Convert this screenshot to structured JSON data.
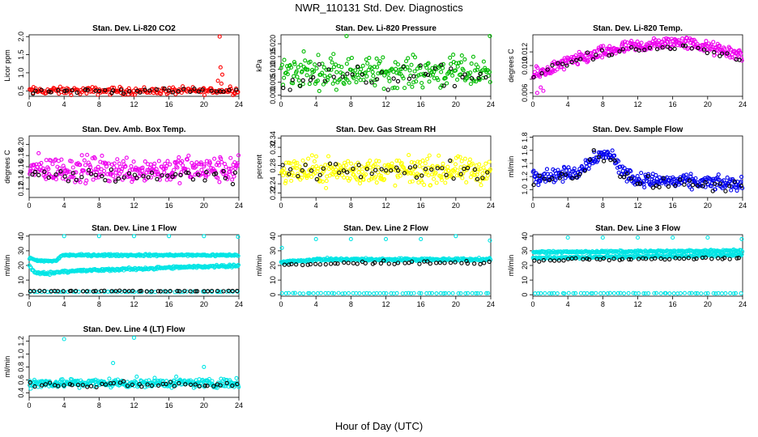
{
  "title": "NWR_110131  Std. Dev. Diagnostics",
  "x_axis_label": "Hour of Day (UTC)",
  "chart_data": [
    {
      "type": "scatter",
      "title": "Stan. Dev. Li-820 CO2",
      "ylabel": "Licor ppm",
      "xlim": [
        0,
        24
      ],
      "ylim": [
        0.35,
        2.05
      ],
      "xticks": [
        0,
        4,
        8,
        12,
        16,
        20,
        24
      ],
      "yticks": [
        0.5,
        1.0,
        1.5,
        2.0
      ],
      "ytick_labels": [
        "0.5",
        "1.0",
        "1.5",
        "2.0"
      ],
      "series": [
        {
          "name": "all",
          "color": "#ff0000",
          "base": 0.5,
          "noise": 0.09,
          "n": 200,
          "extra_points": [
            [
              21.8,
              2.0
            ],
            [
              21.9,
              1.15
            ],
            [
              22.1,
              0.95
            ],
            [
              21.6,
              0.78
            ],
            [
              22.0,
              0.7
            ],
            [
              23.0,
              0.62
            ]
          ]
        },
        {
          "name": "hourly",
          "color": "#000000",
          "base": 0.5,
          "noise": 0.06,
          "n": 40
        }
      ]
    },
    {
      "type": "scatter",
      "title": "Stan. Dev. Li-820 Pressure",
      "ylabel": "kPa",
      "xlim": [
        0,
        24
      ],
      "ylim": [
        -0.0005,
        0.0235
      ],
      "xticks": [
        0,
        4,
        8,
        12,
        16,
        20,
        24
      ],
      "yticks": [
        0.0,
        0.005,
        0.01,
        0.015,
        0.02
      ],
      "ytick_labels": [
        "0.000",
        "0.005",
        "0.010",
        "0.015",
        "0.020"
      ],
      "series": [
        {
          "name": "all",
          "color": "#00bb00",
          "base": 0.009,
          "noise": 0.005,
          "n": 260,
          "extra_points": [
            [
              7.5,
              0.023
            ],
            [
              23.9,
              0.023
            ],
            [
              2.6,
              0.017
            ],
            [
              6.0,
              0.016
            ]
          ]
        },
        {
          "name": "hourly",
          "color": "#000000",
          "base": 0.007,
          "noise": 0.004,
          "n": 40
        }
      ]
    },
    {
      "type": "scatter",
      "title": "Stan. Dev. Li-820 Temp.",
      "ylabel": "degrees C",
      "xlim": [
        0,
        24
      ],
      "ylim": [
        0.0055,
        0.0145
      ],
      "xticks": [
        0,
        4,
        8,
        12,
        16,
        20,
        24
      ],
      "yticks": [
        0.006,
        0.008,
        0.01,
        0.012
      ],
      "ytick_labels": [
        "0.006",
        "",
        "0.010",
        "0.012"
      ],
      "series": [
        {
          "name": "all",
          "color": "#ee00ee",
          "curve": [
            [
              0,
              0.0085
            ],
            [
              4,
              0.0105
            ],
            [
              10,
              0.0125
            ],
            [
              17,
              0.0135
            ],
            [
              24,
              0.0115
            ]
          ],
          "noise": 0.0008,
          "n": 320,
          "extra_points": [
            [
              0.5,
              0.006
            ],
            [
              0.9,
              0.0068
            ],
            [
              1.2,
              0.0063
            ]
          ]
        },
        {
          "name": "hourly",
          "color": "#000000",
          "curve": [
            [
              0,
              0.0085
            ],
            [
              4,
              0.0105
            ],
            [
              10,
              0.0122
            ],
            [
              17,
              0.0128
            ],
            [
              24,
              0.011
            ]
          ],
          "noise": 0.0005,
          "n": 40
        }
      ]
    },
    {
      "type": "scatter",
      "title": "Stan. Dev. Amb. Box Temp.",
      "ylabel": "degrees C",
      "xlim": [
        0,
        24
      ],
      "ylim": [
        0.105,
        0.215
      ],
      "xticks": [
        0,
        4,
        8,
        12,
        16,
        20,
        24
      ],
      "yticks": [
        0.12,
        0.14,
        0.16,
        0.18,
        0.2
      ],
      "ytick_labels": [
        "0.12",
        "0.14",
        "0.16",
        "0.18",
        "0.20"
      ],
      "series": [
        {
          "name": "all",
          "color": "#ee00ee",
          "base": 0.155,
          "noise": 0.02,
          "n": 320
        },
        {
          "name": "hourly",
          "color": "#000000",
          "base": 0.145,
          "noise": 0.012,
          "n": 45
        }
      ]
    },
    {
      "type": "scatter",
      "title": "Stan. Dev. Gas Stream RH",
      "ylabel": "percent",
      "xlim": [
        0,
        24
      ],
      "ylim": [
        0.21,
        0.345
      ],
      "xticks": [
        0,
        4,
        8,
        12,
        16,
        20,
        24
      ],
      "yticks": [
        0.22,
        0.24,
        0.26,
        0.28,
        0.3,
        0.32,
        0.34
      ],
      "ytick_labels": [
        "0.22",
        "0.24",
        "",
        "0.28",
        "",
        "0.32",
        "0.34"
      ],
      "series": [
        {
          "name": "all",
          "color": "#ffff00",
          "base": 0.268,
          "noise": 0.025,
          "n": 320
        },
        {
          "name": "hourly",
          "color": "#000000",
          "base": 0.268,
          "noise": 0.018,
          "n": 45
        }
      ]
    },
    {
      "type": "scatter",
      "title": "Stan. Dev. Sample Flow",
      "ylabel": "ml/min",
      "xlim": [
        0,
        24
      ],
      "ylim": [
        0.88,
        1.82
      ],
      "xticks": [
        0,
        4,
        8,
        12,
        16,
        20,
        24
      ],
      "yticks": [
        1.0,
        1.2,
        1.4,
        1.6,
        1.8
      ],
      "ytick_labels": [
        "1.0",
        "1.2",
        "1.4",
        "1.6",
        "1.8"
      ],
      "series": [
        {
          "name": "all",
          "color": "#0000ee",
          "curve": [
            [
              0,
              1.2
            ],
            [
              5,
              1.25
            ],
            [
              7,
              1.5
            ],
            [
              9,
              1.55
            ],
            [
              10,
              1.3
            ],
            [
              12,
              1.15
            ],
            [
              24,
              1.08
            ]
          ],
          "noise": 0.09,
          "n": 320
        },
        {
          "name": "hourly",
          "color": "#000000",
          "curve": [
            [
              0,
              1.18
            ],
            [
              5,
              1.22
            ],
            [
              7,
              1.5
            ],
            [
              9,
              1.5
            ],
            [
              10,
              1.25
            ],
            [
              12,
              1.1
            ],
            [
              24,
              1.05
            ]
          ],
          "noise": 0.08,
          "n": 45
        }
      ]
    },
    {
      "type": "scatter",
      "title": "Stan. Dev. Line 1 Flow",
      "ylabel": "ml/min",
      "xlim": [
        0,
        24
      ],
      "ylim": [
        -1,
        41
      ],
      "xticks": [
        0,
        4,
        8,
        12,
        16,
        20,
        24
      ],
      "yticks": [
        0,
        10,
        20,
        30,
        40
      ],
      "ytick_labels": [
        "0",
        "10",
        "20",
        "30",
        "40"
      ],
      "series": [
        {
          "name": "band-upper",
          "color": "#00e5e5",
          "curve": [
            [
              0,
              25
            ],
            [
              1,
              23
            ],
            [
              3,
              23
            ],
            [
              3.8,
              27
            ],
            [
              24,
              27
            ]
          ],
          "noise": 0.6,
          "n": 260
        },
        {
          "name": "band-lower",
          "color": "#00e5e5",
          "curve": [
            [
              0,
              20
            ],
            [
              0.6,
              15
            ],
            [
              2,
              14.5
            ],
            [
              4,
              16
            ],
            [
              24,
              20
            ]
          ],
          "noise": 0.8,
          "n": 260
        },
        {
          "name": "base",
          "color": "#00e5e5",
          "curve": [
            [
              0,
              2
            ],
            [
              24,
              2
            ]
          ],
          "noise": 0.2,
          "n": 60,
          "extra_points": [
            [
              4,
              40
            ],
            [
              8,
              40
            ],
            [
              12,
              40
            ],
            [
              16,
              40
            ],
            [
              20,
              40
            ],
            [
              23.9,
              39.5
            ]
          ]
        },
        {
          "name": "hourly",
          "color": "#000000",
          "curve": [
            [
              0,
              2.5
            ],
            [
              24,
              2.5
            ]
          ],
          "noise": 0.2,
          "n": 45
        }
      ]
    },
    {
      "type": "scatter",
      "title": "Stan. Dev. Line 2 Flow",
      "ylabel": "ml/min",
      "xlim": [
        0,
        24
      ],
      "ylim": [
        -1,
        41
      ],
      "xticks": [
        0,
        4,
        8,
        12,
        16,
        20,
        24
      ],
      "yticks": [
        0,
        10,
        20,
        30,
        40
      ],
      "ytick_labels": [
        "0",
        "10",
        "20",
        "30",
        "40"
      ],
      "series": [
        {
          "name": "band",
          "color": "#00e5e5",
          "curve": [
            [
              0,
              22
            ],
            [
              4,
              24
            ],
            [
              24,
              24
            ]
          ],
          "noise": 0.8,
          "n": 320,
          "extra_points": [
            [
              0.1,
              32
            ],
            [
              4,
              38
            ],
            [
              8,
              38
            ],
            [
              12,
              38
            ],
            [
              16,
              38
            ],
            [
              20,
              40
            ],
            [
              23.9,
              37
            ]
          ]
        },
        {
          "name": "base",
          "color": "#00e5e5",
          "curve": [
            [
              0,
              1
            ],
            [
              24,
              1
            ]
          ],
          "noise": 0.15,
          "n": 60
        },
        {
          "name": "hourly",
          "color": "#000000",
          "curve": [
            [
              0,
              20
            ],
            [
              4,
              21
            ],
            [
              12,
              22
            ],
            [
              19,
              22
            ],
            [
              24,
              22
            ]
          ],
          "noise": 0.9,
          "n": 45
        }
      ]
    },
    {
      "type": "scatter",
      "title": "Stan. Dev. Line 3 Flow",
      "ylabel": "ml/min",
      "xlim": [
        0,
        24
      ],
      "ylim": [
        -1,
        41
      ],
      "xticks": [
        0,
        4,
        8,
        12,
        16,
        20,
        24
      ],
      "yticks": [
        0,
        10,
        20,
        30,
        40
      ],
      "ytick_labels": [
        "0",
        "10",
        "20",
        "30",
        "40"
      ],
      "series": [
        {
          "name": "band-upper",
          "color": "#00e5e5",
          "curve": [
            [
              0,
              29
            ],
            [
              24,
              30
            ]
          ],
          "noise": 0.6,
          "n": 240
        },
        {
          "name": "band-lower",
          "color": "#00e5e5",
          "curve": [
            [
              0,
              25
            ],
            [
              24,
              27
            ]
          ],
          "noise": 0.7,
          "n": 240,
          "extra_points": [
            [
              4,
              39
            ],
            [
              8,
              39
            ],
            [
              12,
              39
            ],
            [
              16,
              39
            ],
            [
              20,
              39
            ],
            [
              23.9,
              38
            ]
          ]
        },
        {
          "name": "base",
          "color": "#00e5e5",
          "curve": [
            [
              0,
              1
            ],
            [
              24,
              1
            ]
          ],
          "noise": 0.15,
          "n": 60
        },
        {
          "name": "hourly",
          "color": "#000000",
          "curve": [
            [
              0,
              23
            ],
            [
              4,
              24
            ],
            [
              24,
              25
            ]
          ],
          "noise": 0.7,
          "n": 45
        }
      ]
    },
    {
      "type": "scatter",
      "title": "Stan. Dev. Line 4 (LT) Flow",
      "ylabel": "ml/min",
      "xlim": [
        0,
        24
      ],
      "ylim": [
        0.33,
        1.28
      ],
      "xticks": [
        0,
        4,
        8,
        12,
        16,
        20,
        24
      ],
      "yticks": [
        0.4,
        0.6,
        0.8,
        1.0,
        1.2
      ],
      "ytick_labels": [
        "0.4",
        "0.6",
        "0.8",
        "1.0",
        "1.2"
      ],
      "series": [
        {
          "name": "all",
          "color": "#00e5e5",
          "base": 0.55,
          "noise": 0.06,
          "n": 320,
          "extra_points": [
            [
              4,
              1.23
            ],
            [
              12,
              1.25
            ],
            [
              9.6,
              0.86
            ],
            [
              20,
              0.8
            ],
            [
              0.6,
              0.6
            ]
          ]
        },
        {
          "name": "hourly",
          "color": "#000000",
          "base": 0.53,
          "noise": 0.04,
          "n": 45
        }
      ]
    }
  ]
}
